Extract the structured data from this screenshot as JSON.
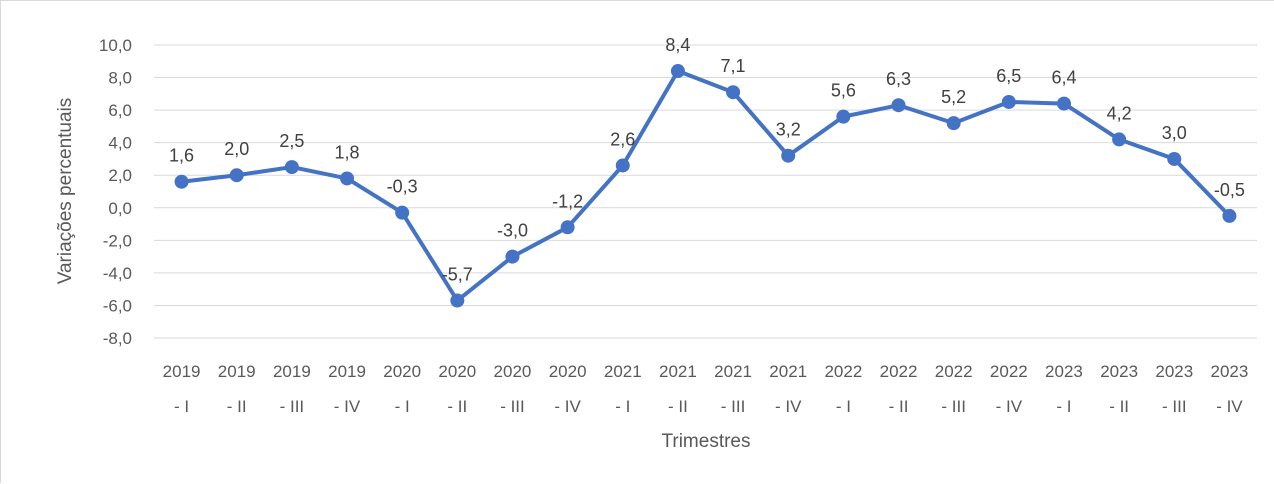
{
  "chart_data": {
    "type": "line",
    "title": "",
    "xlabel": "Trimestres",
    "ylabel": "Variações  percentuais",
    "ylim": [
      -8,
      10
    ],
    "ytick_step": 2,
    "ytick_labels": [
      "10,0",
      "8,0",
      "6,0",
      "4,0",
      "2,0",
      "0,0",
      "-2,0",
      "-4,0",
      "-6,0",
      "-8,0"
    ],
    "grid": true,
    "legend": "none",
    "categories": [
      [
        "2019",
        "- I"
      ],
      [
        "2019",
        "- II"
      ],
      [
        "2019",
        "- III"
      ],
      [
        "2019",
        "- IV"
      ],
      [
        "2020",
        "- I"
      ],
      [
        "2020",
        "- II"
      ],
      [
        "2020",
        "- III"
      ],
      [
        "2020",
        "- IV"
      ],
      [
        "2021",
        "- I"
      ],
      [
        "2021",
        "- II"
      ],
      [
        "2021",
        "- III"
      ],
      [
        "2021",
        "- IV"
      ],
      [
        "2022",
        "- I"
      ],
      [
        "2022",
        "- II"
      ],
      [
        "2022",
        "- III"
      ],
      [
        "2022",
        "- IV"
      ],
      [
        "2023",
        "- I"
      ],
      [
        "2023",
        "- II"
      ],
      [
        "2023",
        "- III"
      ],
      [
        "2023",
        "- IV"
      ]
    ],
    "series": [
      {
        "values": [
          1.6,
          2.0,
          2.5,
          1.8,
          -0.3,
          -5.7,
          -3.0,
          -1.2,
          2.6,
          8.4,
          7.1,
          3.2,
          5.6,
          6.3,
          5.2,
          6.5,
          6.4,
          4.2,
          3.0,
          -0.5
        ],
        "data_labels": [
          "1,6",
          "2,0",
          "2,5",
          "1,8",
          "-0,3",
          "-5,7",
          "-3,0",
          "-1,2",
          "2,6",
          "8,4",
          "7,1",
          "3,2",
          "5,6",
          "6,3",
          "5,2",
          "6,5",
          "6,4",
          "4,2",
          "3,0",
          "-0,5"
        ],
        "color": "#4472c4"
      }
    ]
  }
}
